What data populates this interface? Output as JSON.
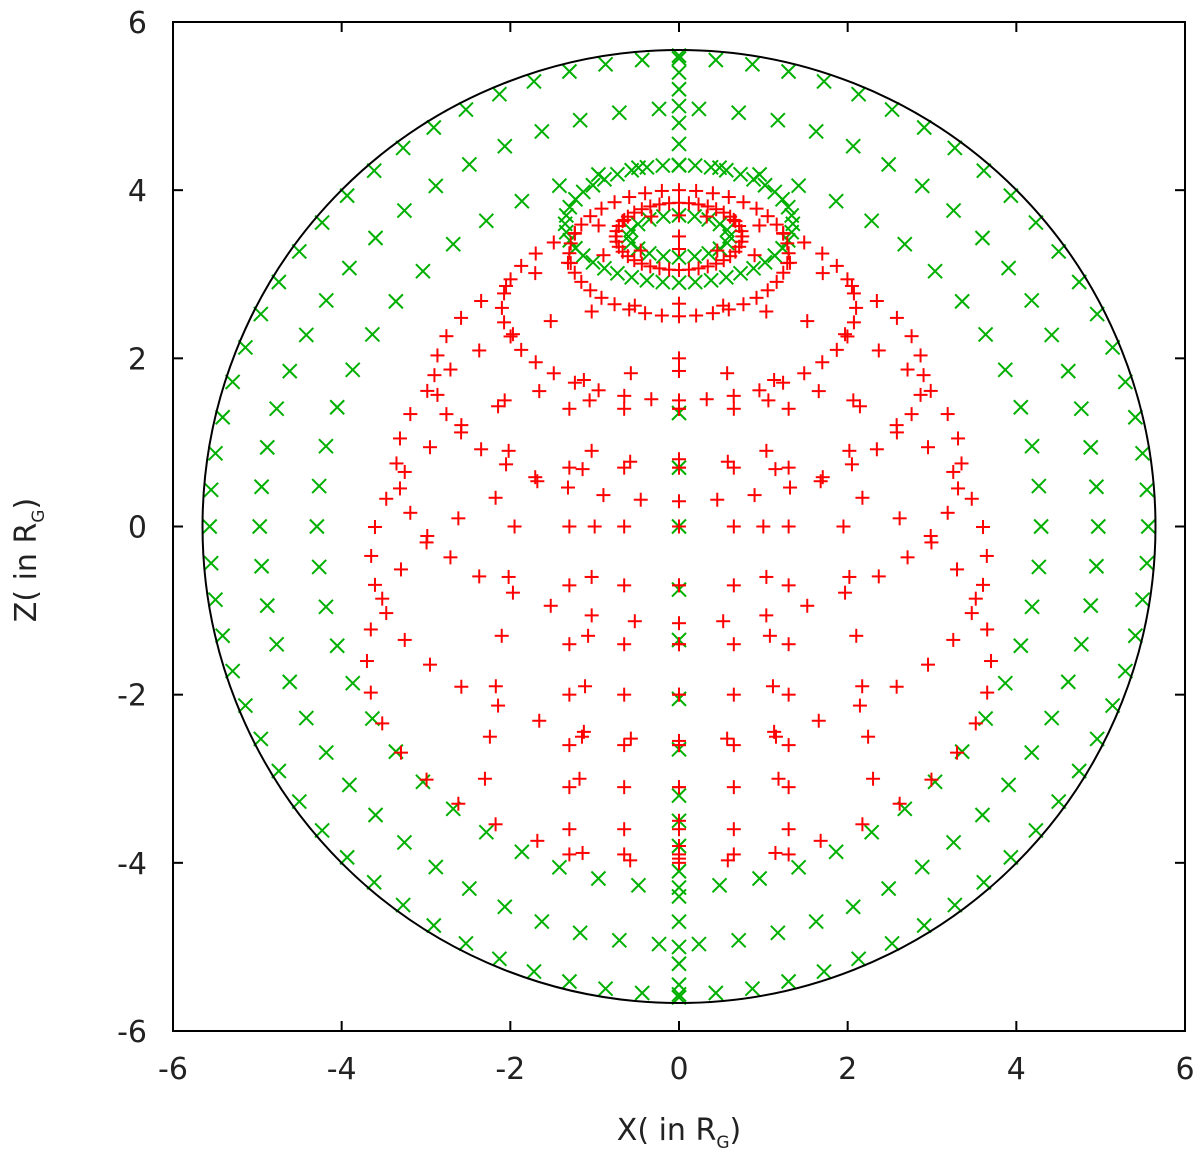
{
  "chart_data": {
    "type": "scatter",
    "xlabel": {
      "prefix": "X( in R",
      "sub": "G",
      "suffix": ")"
    },
    "ylabel": {
      "prefix": "Z( in R",
      "sub": "G",
      "suffix": ")"
    },
    "xlim": [
      -6,
      6
    ],
    "ylim": [
      -6,
      6
    ],
    "xticks": [
      "-6",
      "-4",
      "-2",
      "0",
      "2",
      "4",
      "6"
    ],
    "yticks": [
      "-6",
      "-4",
      "-2",
      "0",
      "2",
      "4",
      "6"
    ],
    "grid": false,
    "legend": "none",
    "boundary_circle": {
      "radius": 5.65,
      "color": "#000000"
    },
    "colors": {
      "red": "#ff0000",
      "green": "#00b000",
      "frame": "#000000"
    },
    "series": [
      {
        "marker": "plus",
        "color": "#ff0000",
        "families": {
          "rings": [
            {
              "z": 3.45,
              "rx": 0.75,
              "ry": 0.4,
              "n": 40
            },
            {
              "z": 3.25,
              "rx": 1.3,
              "ry": 0.75,
              "n": 40
            },
            {
              "z": 2.6,
              "rx": 2.1,
              "ry": 1.1,
              "n": 40
            },
            {
              "z": 1.8,
              "rx": 2.9,
              "ry": 1.5,
              "n": 40
            },
            {
              "z": 0.75,
              "rx": 3.35,
              "ry": 1.9,
              "n": 40
            },
            {
              "z": -0.35,
              "rx": 3.65,
              "ry": 2.2,
              "n": 40
            },
            {
              "z": -1.6,
              "rx": 3.7,
              "ry": 2.4,
              "n": 40
            }
          ],
          "grid": {
            "xs": [
              -1.3,
              -0.65,
              0,
              0.65,
              1.3
            ],
            "zs": [
              1.4,
              0.7,
              0,
              -0.7,
              -1.4,
              -2.0,
              -2.6,
              -3.1,
              -3.6,
              -3.9
            ]
          },
          "spokes_x": [
            -1.95,
            -1.0,
            1.0,
            1.95
          ],
          "axis_points_z": [
            3.45,
            2.0,
            1.4,
            0.7,
            0,
            -0.7,
            -1.4,
            -2.0,
            -2.6,
            -3.1,
            -3.5,
            -3.8,
            -3.95
          ]
        }
      },
      {
        "marker": "cross",
        "color": "#00b000",
        "families": {
          "top_rings": [
            {
              "z": 3.6,
              "rx": 1.35,
              "ry": 0.7,
              "n": 44
            },
            {
              "z": 3.45,
              "rx": 0.6,
              "ry": 0.25,
              "n": 20
            }
          ],
          "shells": [
            {
              "scale": 0.985,
              "n": 80
            },
            {
              "scale": 0.88,
              "n": 66
            },
            {
              "scale": 0.76,
              "n": 56
            }
          ],
          "axis_points_z": [
            5.6,
            5.4,
            5.2,
            5.0,
            4.8,
            4.55,
            1.35,
            0.7,
            0,
            -0.75,
            -1.35,
            -2.05,
            -2.65,
            -3.2,
            -3.5,
            -3.8,
            -4.1,
            -4.4,
            -4.7,
            -5.0,
            -5.2,
            -5.45,
            -5.6
          ]
        }
      }
    ]
  }
}
